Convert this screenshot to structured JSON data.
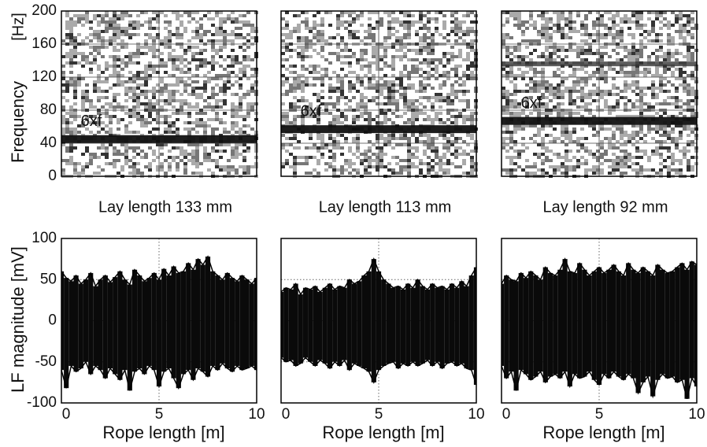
{
  "chart_data": [
    {
      "type": "heatmap",
      "ylim": [
        0,
        200
      ],
      "yticks": [
        0,
        40,
        80,
        120,
        160,
        200
      ],
      "y_label": "Frequency",
      "y_unit": "[Hz]",
      "caption": "Lay length 133 mm",
      "bands": [
        {
          "label": "6xf",
          "frequency": 45
        }
      ]
    },
    {
      "type": "heatmap",
      "ylim": [
        0,
        200
      ],
      "caption": "Lay length 113 mm",
      "bands": [
        {
          "label": "6xf",
          "frequency": 57
        }
      ]
    },
    {
      "type": "heatmap",
      "ylim": [
        0,
        200
      ],
      "caption": "Lay length 92 mm",
      "bands": [
        {
          "label": "6xf",
          "frequency": 67
        },
        {
          "frequency": 136
        }
      ]
    },
    {
      "type": "area",
      "xlim": [
        0,
        10
      ],
      "xticks": [
        0,
        5,
        10
      ],
      "ylim": [
        -100,
        100
      ],
      "yticks": [
        -100,
        -50,
        0,
        50,
        100
      ],
      "x_label": "Rope length [m]",
      "y_label": "LF magnitude [mV]",
      "x": [
        0,
        0.25,
        0.5,
        0.75,
        1,
        1.25,
        1.5,
        1.75,
        2,
        2.25,
        2.5,
        2.75,
        3,
        3.25,
        3.5,
        3.75,
        4,
        4.25,
        4.5,
        4.75,
        5,
        5.25,
        5.5,
        5.75,
        6,
        6.25,
        6.5,
        6.75,
        7,
        7.25,
        7.5,
        7.75,
        8,
        8.25,
        8.5,
        8.75,
        9,
        9.25,
        9.5,
        9.75,
        10
      ],
      "upper": [
        60,
        52,
        48,
        55,
        45,
        50,
        58,
        42,
        50,
        55,
        47,
        53,
        60,
        50,
        44,
        62,
        55,
        48,
        52,
        58,
        50,
        63,
        55,
        66,
        58,
        60,
        70,
        62,
        75,
        68,
        78,
        60,
        55,
        50,
        58,
        52,
        48,
        55,
        50,
        45,
        52
      ],
      "lower": [
        -60,
        -82,
        -55,
        -62,
        -58,
        -50,
        -65,
        -55,
        -60,
        -70,
        -58,
        -65,
        -72,
        -60,
        -85,
        -62,
        -58,
        -65,
        -55,
        -60,
        -80,
        -62,
        -58,
        -70,
        -82,
        -65,
        -60,
        -72,
        -58,
        -62,
        -68,
        -55,
        -60,
        -52,
        -58,
        -62,
        -55,
        -60,
        -58,
        -55,
        -60
      ]
    },
    {
      "type": "area",
      "xlim": [
        0,
        10
      ],
      "xticks": [
        0,
        5,
        10
      ],
      "ylim": [
        -100,
        100
      ],
      "x_label": "Rope length [m]",
      "x": [
        0,
        0.25,
        0.5,
        0.75,
        1,
        1.25,
        1.5,
        1.75,
        2,
        2.25,
        2.5,
        2.75,
        3,
        3.25,
        3.5,
        3.75,
        4,
        4.25,
        4.5,
        4.75,
        5,
        5.25,
        5.5,
        5.75,
        6,
        6.25,
        6.5,
        6.75,
        7,
        7.25,
        7.5,
        7.75,
        8,
        8.25,
        8.5,
        8.75,
        9,
        9.25,
        9.5,
        9.75,
        10
      ],
      "upper": [
        35,
        40,
        38,
        45,
        32,
        40,
        38,
        42,
        35,
        40,
        45,
        38,
        42,
        40,
        50,
        45,
        48,
        55,
        60,
        75,
        60,
        50,
        45,
        40,
        42,
        38,
        45,
        40,
        50,
        42,
        38,
        45,
        40,
        42,
        38,
        45,
        40,
        48,
        42,
        55,
        65
      ],
      "lower": [
        -45,
        -50,
        -48,
        -55,
        -52,
        -45,
        -50,
        -55,
        -48,
        -52,
        -58,
        -50,
        -55,
        -48,
        -60,
        -52,
        -55,
        -58,
        -62,
        -75,
        -60,
        -55,
        -52,
        -50,
        -58,
        -52,
        -55,
        -50,
        -55,
        -52,
        -48,
        -55,
        -50,
        -58,
        -52,
        -50,
        -55,
        -52,
        -58,
        -60,
        -78
      ]
    },
    {
      "type": "area",
      "xlim": [
        0,
        10
      ],
      "xticks": [
        0,
        5,
        10
      ],
      "ylim": [
        -100,
        100
      ],
      "x_label": "Rope length [m]",
      "x": [
        0,
        0.25,
        0.5,
        0.75,
        1,
        1.25,
        1.5,
        1.75,
        2,
        2.25,
        2.5,
        2.75,
        3,
        3.25,
        3.5,
        3.75,
        4,
        4.25,
        4.5,
        4.75,
        5,
        5.25,
        5.5,
        5.75,
        6,
        6.25,
        6.5,
        6.75,
        7,
        7.25,
        7.5,
        7.75,
        8,
        8.25,
        8.5,
        8.75,
        9,
        9.25,
        9.5,
        9.75,
        10
      ],
      "upper": [
        45,
        55,
        50,
        48,
        58,
        52,
        60,
        55,
        50,
        65,
        58,
        55,
        62,
        75,
        60,
        58,
        70,
        62,
        55,
        60,
        65,
        58,
        62,
        68,
        60,
        55,
        70,
        62,
        58,
        65,
        60,
        55,
        68,
        62,
        58,
        60,
        65,
        70,
        62,
        72,
        68
      ],
      "lower": [
        -55,
        -70,
        -62,
        -85,
        -60,
        -65,
        -72,
        -68,
        -62,
        -75,
        -68,
        -65,
        -70,
        -62,
        -80,
        -65,
        -70,
        -68,
        -62,
        -72,
        -78,
        -65,
        -70,
        -62,
        -68,
        -72,
        -65,
        -70,
        -88,
        -75,
        -68,
        -92,
        -72,
        -65,
        -70,
        -68,
        -75,
        -72,
        -95,
        -70,
        -80
      ]
    }
  ]
}
